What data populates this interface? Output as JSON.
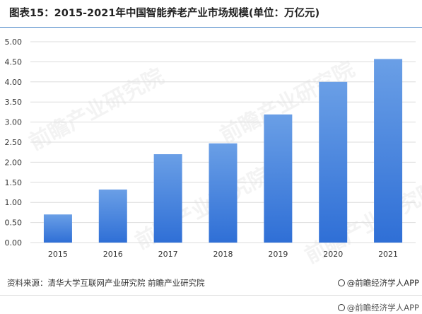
{
  "title": "图表15：2015-2021年中国智能养老产业市场规模(单位：万亿元)",
  "source": "资料来源：清华大学互联网产业研究院 前瞻产业研究院",
  "brand": "@前瞻经济学人APP",
  "brand_bottom": "@前瞻经济学人APP",
  "watermark": "前瞻产业研究院",
  "colors": {
    "bar_top": "#6a9fe6",
    "bar_bottom": "#2f6fd6",
    "grid": "#dcdcdc",
    "title_rule": "#4a86c8"
  },
  "chart_data": {
    "type": "bar",
    "categories": [
      "2015",
      "2016",
      "2017",
      "2018",
      "2019",
      "2020",
      "2021"
    ],
    "values": [
      0.7,
      1.32,
      2.2,
      2.47,
      3.19,
      4.0,
      4.57
    ],
    "title": "",
    "xlabel": "",
    "ylabel": "",
    "ylim": [
      0,
      5
    ],
    "yticks": [
      "0.00",
      "0.50",
      "1.00",
      "1.50",
      "2.00",
      "2.50",
      "3.00",
      "3.50",
      "4.00",
      "4.50",
      "5.00"
    ],
    "grid": true,
    "legend": "none"
  }
}
